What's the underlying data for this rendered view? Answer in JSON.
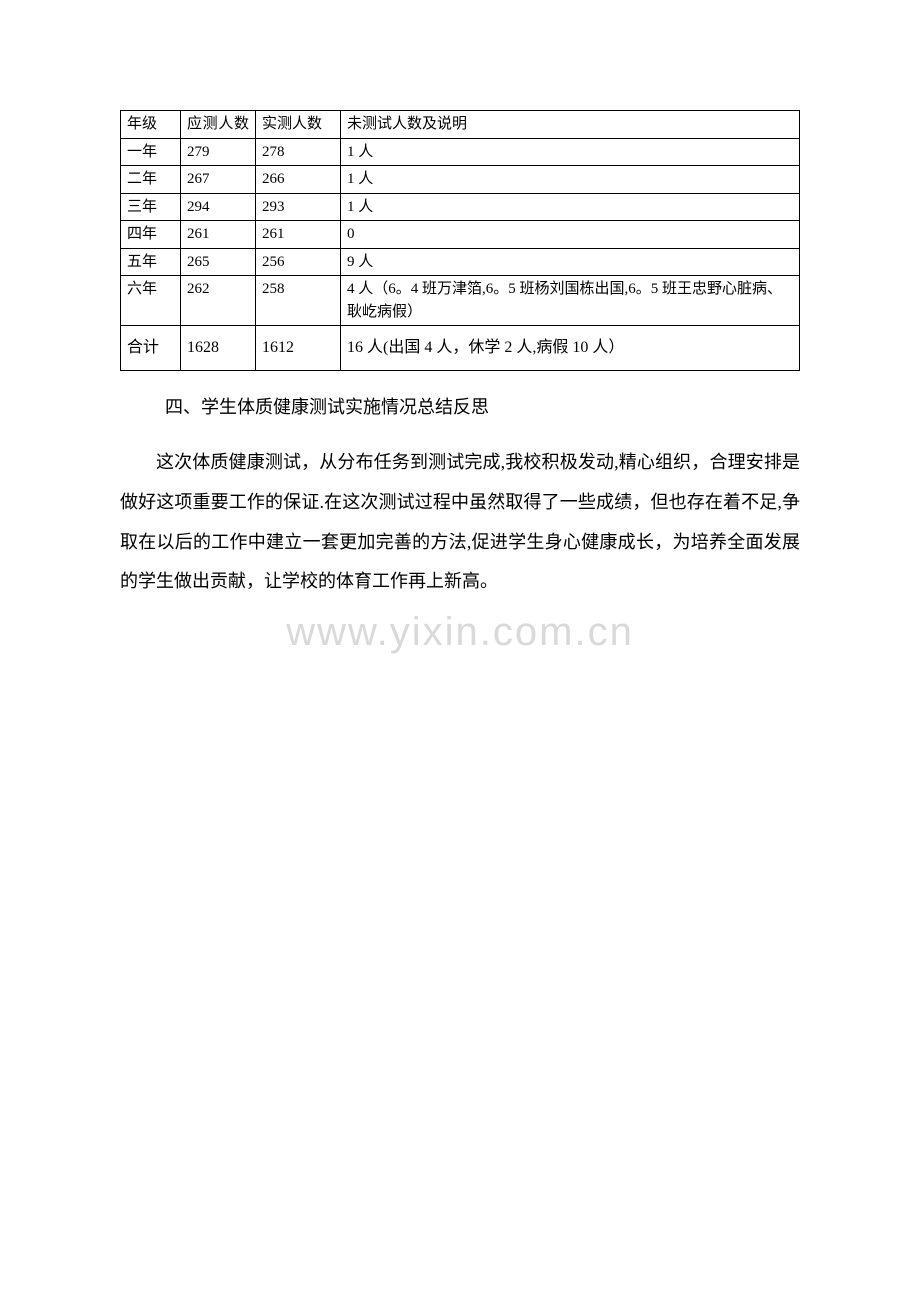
{
  "table": {
    "headers": {
      "col1": "年级",
      "col2": "应测人数",
      "col3": "实测人数",
      "col4": "未测试人数及说明"
    },
    "rows": [
      {
        "grade": "一年",
        "expected": "279",
        "actual": "278",
        "note": "1 人"
      },
      {
        "grade": "二年",
        "expected": "267",
        "actual": "266",
        "note": "1 人"
      },
      {
        "grade": "三年",
        "expected": "294",
        "actual": "293",
        "note": "1 人"
      },
      {
        "grade": "四年",
        "expected": "261",
        "actual": "261",
        "note": "0"
      },
      {
        "grade": "五年",
        "expected": "265",
        "actual": "256",
        "note": "9 人"
      },
      {
        "grade": "六年",
        "expected": "262",
        "actual": "258",
        "note": "4 人（6。4 班万津箔,6。5 班杨刘国栋出国,6。5 班王忠野心脏病、耿屹病假）"
      }
    ],
    "total": {
      "label": "合计",
      "expected": "1628",
      "actual": "1612",
      "note": "16 人(出国 4 人，休学 2 人,病假 10 人）"
    }
  },
  "section_title": "四、学生体质健康测试实施情况总结反思",
  "body": "这次体质健康测试，从分布任务到测试完成,我校积极发动,精心组织，合理安排是做好这项重要工作的保证.在这次测试过程中虽然取得了一些成绩，但也存在着不足,争取在以后的工作中建立一套更加完善的方法,促进学生身心健康成长，为培养全面发展的学生做出贡献，让学校的体育工作再上新高。",
  "watermark": "www.yixin.com.cn",
  "colors": {
    "text": "#000000",
    "border": "#000000",
    "watermark": "#d9d9d9",
    "background": "#ffffff"
  },
  "fonts": {
    "body_size": 18,
    "table_size": 15,
    "watermark_size": 40
  }
}
